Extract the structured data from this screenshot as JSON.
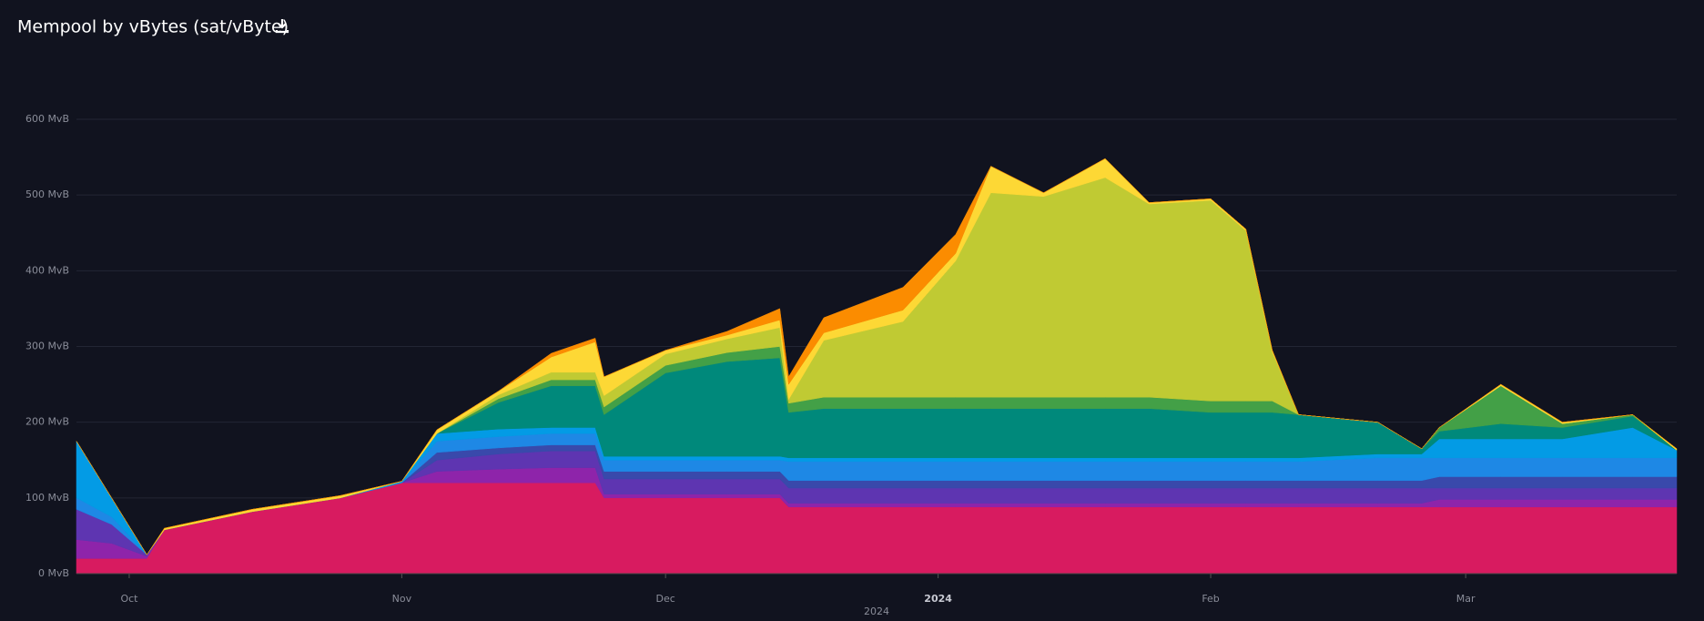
{
  "chart_data": {
    "type": "stacked-area",
    "title": "Mempool by vBytes (sat/vByte)",
    "x": [
      "2023-09-25",
      "2023-09-29",
      "2023-10-03",
      "2023-10-05",
      "2023-10-15",
      "2023-10-25",
      "2023-11-01",
      "2023-11-05",
      "2023-11-12",
      "2023-11-18",
      "2023-11-23",
      "2023-11-24",
      "2023-12-01",
      "2023-12-08",
      "2023-12-14",
      "2023-12-15",
      "2023-12-19",
      "2023-12-28",
      "2024-01-03",
      "2024-01-07",
      "2024-01-13",
      "2024-01-20",
      "2024-01-25",
      "2024-02-01",
      "2024-02-05",
      "2024-02-08",
      "2024-02-11",
      "2024-02-20",
      "2024-02-25",
      "2024-02-27",
      "2024-03-05",
      "2024-03-12",
      "2024-03-20",
      "2024-03-25"
    ],
    "series": [
      {
        "color": "#d81b60",
        "values": [
          20,
          20,
          20,
          58,
          82,
          100,
          120,
          120,
          120,
          120,
          120,
          100,
          100,
          100,
          100,
          88,
          88,
          88,
          88,
          88,
          88,
          88,
          88,
          88,
          88,
          88,
          88,
          88,
          88,
          88,
          88,
          88,
          88,
          88
        ]
      },
      {
        "color": "#8e24aa",
        "values": [
          25,
          20,
          3,
          0,
          0,
          0,
          0,
          15,
          18,
          20,
          20,
          5,
          5,
          5,
          5,
          5,
          5,
          5,
          5,
          5,
          5,
          5,
          5,
          5,
          5,
          5,
          5,
          5,
          5,
          10,
          10,
          10,
          10,
          10
        ]
      },
      {
        "color": "#5e35b1",
        "values": [
          40,
          25,
          2,
          0,
          0,
          0,
          0,
          15,
          20,
          22,
          22,
          20,
          20,
          20,
          20,
          20,
          20,
          20,
          20,
          20,
          20,
          20,
          20,
          20,
          20,
          20,
          20,
          20,
          20,
          15,
          15,
          15,
          15,
          15
        ]
      },
      {
        "color": "#3949ab",
        "values": [
          0,
          0,
          0,
          0,
          0,
          0,
          0,
          10,
          8,
          8,
          8,
          10,
          10,
          10,
          10,
          10,
          10,
          10,
          10,
          10,
          10,
          10,
          10,
          10,
          10,
          10,
          10,
          10,
          10,
          15,
          15,
          15,
          15,
          15
        ]
      },
      {
        "color": "#1e88e5",
        "values": [
          15,
          10,
          0,
          0,
          0,
          0,
          0,
          15,
          15,
          15,
          15,
          15,
          15,
          15,
          15,
          25,
          25,
          25,
          25,
          25,
          25,
          25,
          25,
          25,
          25,
          25,
          25,
          30,
          30,
          25,
          25,
          25,
          25,
          25
        ]
      },
      {
        "color": "#039be5",
        "values": [
          75,
          25,
          0,
          0,
          0,
          0,
          2,
          10,
          10,
          8,
          8,
          5,
          5,
          5,
          5,
          5,
          5,
          5,
          5,
          5,
          5,
          5,
          5,
          5,
          5,
          5,
          5,
          5,
          5,
          25,
          25,
          25,
          40,
          10
        ]
      },
      {
        "color": "#00897b",
        "values": [
          0,
          0,
          0,
          0,
          0,
          0,
          0,
          0,
          35,
          55,
          55,
          55,
          110,
          125,
          130,
          60,
          65,
          65,
          65,
          65,
          65,
          65,
          65,
          60,
          60,
          60,
          57,
          42,
          7,
          10,
          20,
          15,
          15,
          0
        ]
      },
      {
        "color": "#43a047",
        "values": [
          0,
          0,
          0,
          0,
          0,
          0,
          0,
          0,
          5,
          8,
          8,
          10,
          10,
          12,
          15,
          12,
          15,
          15,
          15,
          15,
          15,
          15,
          15,
          15,
          15,
          15,
          0,
          0,
          0,
          5,
          50,
          5,
          2,
          0
        ]
      },
      {
        "color": "#c0ca33",
        "values": [
          0,
          0,
          0,
          0,
          0,
          0,
          0,
          0,
          5,
          10,
          10,
          15,
          15,
          18,
          25,
          5,
          75,
          100,
          180,
          270,
          265,
          290,
          255,
          265,
          225,
          65,
          0,
          0,
          0,
          0,
          0,
          0,
          0,
          0
        ]
      },
      {
        "color": "#fdd835",
        "values": [
          0,
          0,
          0,
          2,
          3,
          3,
          0,
          5,
          5,
          20,
          40,
          25,
          5,
          5,
          10,
          20,
          10,
          15,
          10,
          35,
          5,
          25,
          2,
          2,
          2,
          2,
          0,
          0,
          0,
          0,
          2,
          2,
          0,
          2
        ]
      },
      {
        "color": "#fb8c00",
        "values": [
          0,
          0,
          0,
          0,
          0,
          0,
          0,
          0,
          0,
          5,
          5,
          0,
          0,
          5,
          15,
          10,
          20,
          30,
          25,
          0,
          0,
          0,
          0,
          0,
          0,
          0,
          0,
          0,
          0,
          0,
          0,
          0,
          0,
          0
        ]
      }
    ],
    "xlim": [
      "2023-09-25",
      "2024-03-25"
    ],
    "xticks": [
      {
        "value": "2023-10-01",
        "label": "Oct"
      },
      {
        "value": "2023-11-01",
        "label": "Nov"
      },
      {
        "value": "2023-12-01",
        "label": "Dec"
      },
      {
        "value": "2024-01-01",
        "label": "2024"
      },
      {
        "value": "2024-02-01",
        "label": "Feb"
      },
      {
        "value": "2024-03-01",
        "label": "Mar"
      }
    ],
    "xlabel": "2024",
    "ylim": [
      0,
      600
    ],
    "yticks": [
      {
        "value": 0,
        "label": "0 MvB"
      },
      {
        "value": 100,
        "label": "100 MvB"
      },
      {
        "value": 200,
        "label": "200 MvB"
      },
      {
        "value": 300,
        "label": "300 MvB"
      },
      {
        "value": 400,
        "label": "400 MvB"
      },
      {
        "value": 500,
        "label": "500 MvB"
      },
      {
        "value": 600,
        "label": "600 MvB"
      }
    ],
    "grid": true
  }
}
